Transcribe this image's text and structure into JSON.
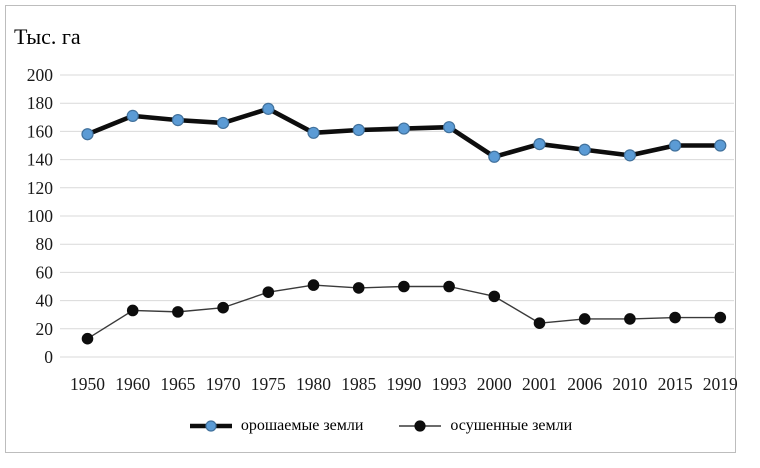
{
  "chart_data": {
    "type": "line",
    "title": "",
    "ylabel": "Тыс. га",
    "xlabel": "",
    "categories": [
      "1950",
      "1960",
      "1965",
      "1970",
      "1975",
      "1980",
      "1985",
      "1990",
      "1993",
      "2000",
      "2001",
      "2006",
      "2010",
      "2015",
      "2019"
    ],
    "ylim": [
      0,
      200
    ],
    "ytick_step": 20,
    "grid": "horizontal",
    "legend_position": "bottom",
    "series": [
      {
        "name": "орошаемые земли",
        "values": [
          158,
          171,
          168,
          166,
          176,
          159,
          161,
          162,
          163,
          142,
          151,
          147,
          143,
          150,
          150
        ],
        "line_color": "#0d0d0d",
        "marker_color": "#5b9bd5",
        "marker_border_color": "#41719c",
        "style": "thick-line-blue-round-markers"
      },
      {
        "name": "осушенные земли",
        "values": [
          13,
          33,
          32,
          35,
          46,
          51,
          49,
          50,
          50,
          43,
          24,
          27,
          27,
          28,
          28
        ],
        "line_color": "#3a3a3a",
        "marker_color": "#0d0d0d",
        "marker_border_color": "#0d0d0d",
        "style": "thin-line-black-round-markers"
      }
    ]
  },
  "colors": {
    "gridline": "#d9d9d9",
    "axis_text": "#1a1a1a",
    "frame_border": "#bdbdbd"
  }
}
